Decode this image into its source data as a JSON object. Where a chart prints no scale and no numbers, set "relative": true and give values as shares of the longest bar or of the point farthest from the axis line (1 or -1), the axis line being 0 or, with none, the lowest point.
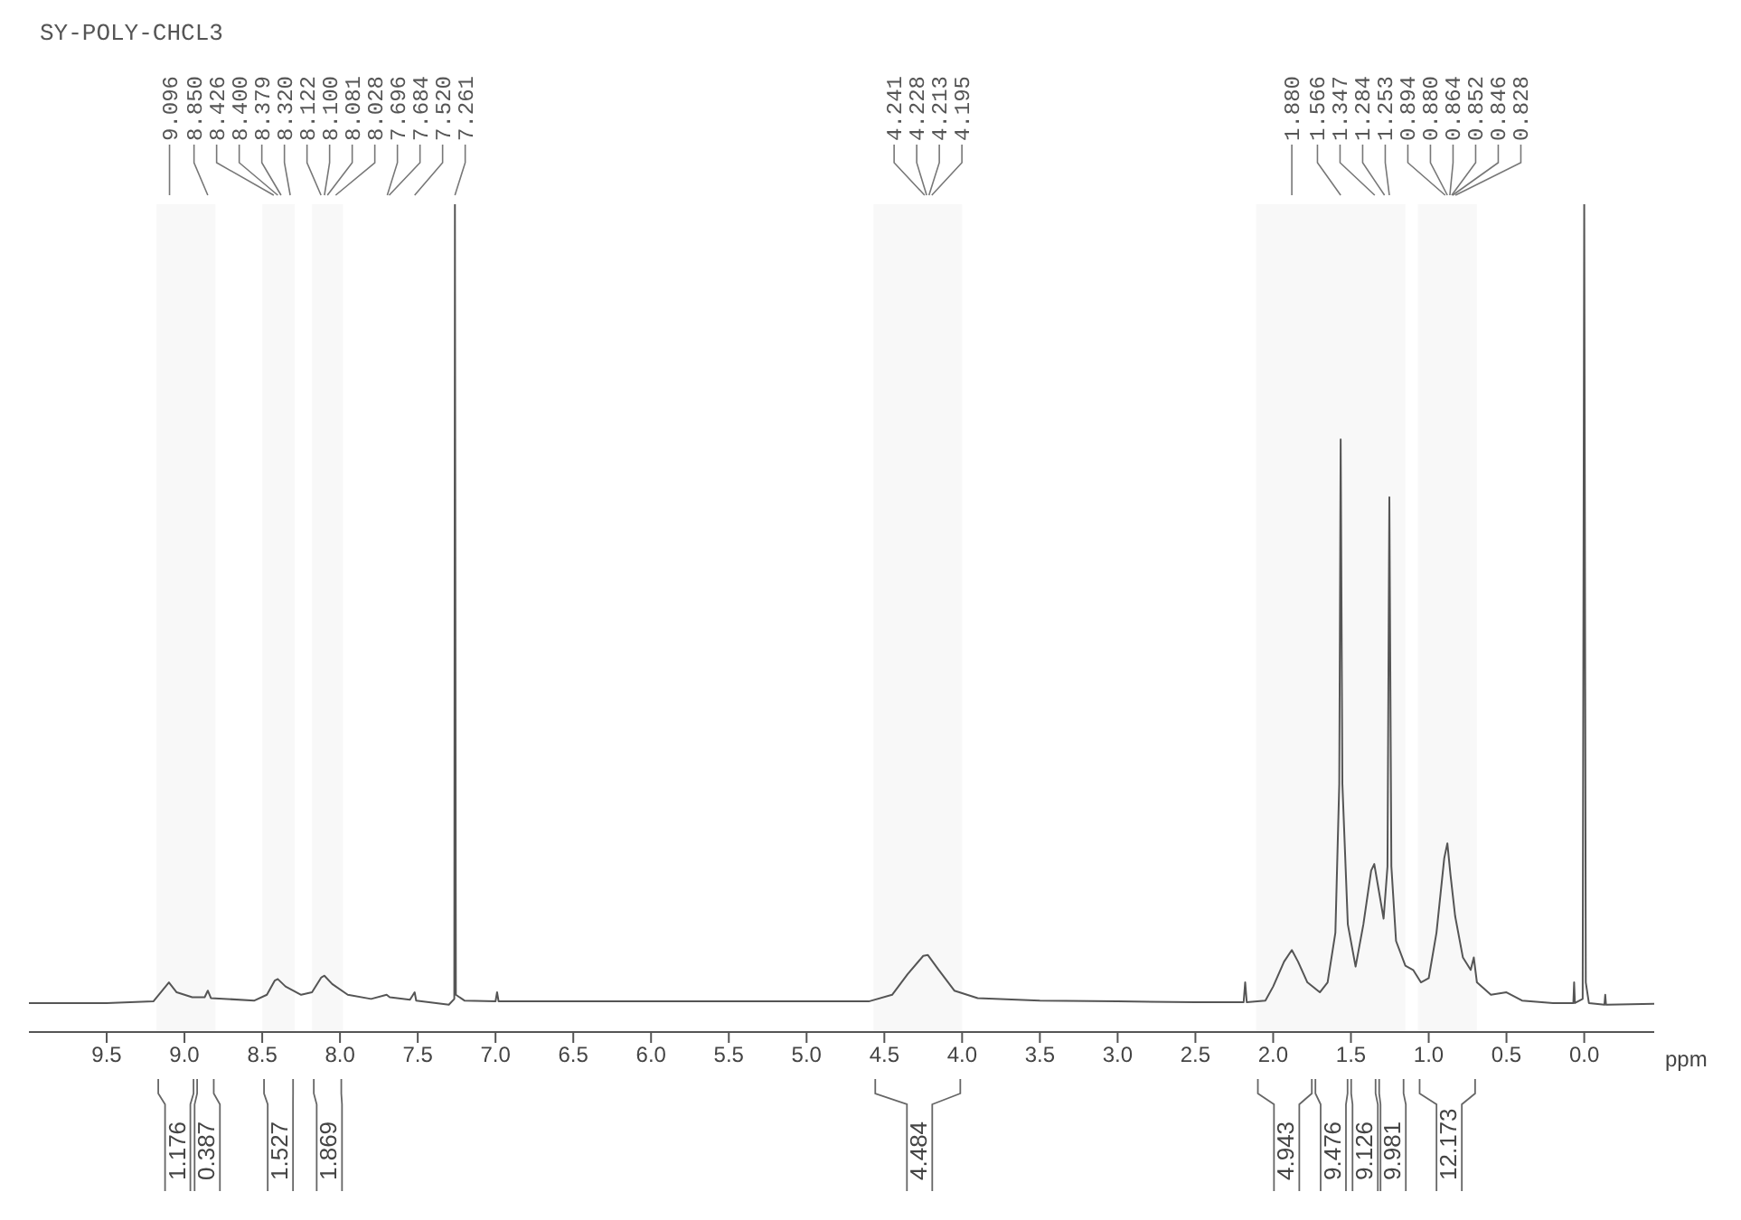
{
  "chart_data": {
    "type": "line",
    "title": "SY-POLY-CHCL3",
    "xlabel": "ppm",
    "relative": true,
    "xlim": [
      10.0,
      -0.45
    ],
    "xticks": [
      {
        "value": 9.5,
        "label": "9.5"
      },
      {
        "value": 9.0,
        "label": "9.0"
      },
      {
        "value": 8.5,
        "label": "8.5"
      },
      {
        "value": 8.0,
        "label": "8.0"
      },
      {
        "value": 7.5,
        "label": "7.5"
      },
      {
        "value": 7.0,
        "label": "7.0"
      },
      {
        "value": 6.5,
        "label": "6.5"
      },
      {
        "value": 6.0,
        "label": "6.0"
      },
      {
        "value": 5.5,
        "label": "5.5"
      },
      {
        "value": 5.0,
        "label": "5.0"
      },
      {
        "value": 4.5,
        "label": "4.5"
      },
      {
        "value": 4.0,
        "label": "4.0"
      },
      {
        "value": 3.5,
        "label": "3.5"
      },
      {
        "value": 3.0,
        "label": "3.0"
      },
      {
        "value": 2.5,
        "label": "2.5"
      },
      {
        "value": 2.0,
        "label": "2.0"
      },
      {
        "value": 1.5,
        "label": "1.5"
      },
      {
        "value": 1.0,
        "label": "1.0"
      },
      {
        "value": 0.5,
        "label": "0.5"
      },
      {
        "value": 0.0,
        "label": "0.0"
      }
    ],
    "x": [
      10.0,
      9.5,
      9.2,
      9.1,
      9.05,
      8.95,
      8.87,
      8.85,
      8.83,
      8.55,
      8.47,
      8.42,
      8.4,
      8.35,
      8.25,
      8.18,
      8.12,
      8.1,
      8.05,
      7.95,
      7.8,
      7.7,
      7.68,
      7.55,
      7.52,
      7.51,
      7.3,
      7.265,
      7.261,
      7.255,
      7.2,
      7.0,
      6.99,
      6.98,
      6.0,
      5.0,
      4.6,
      4.45,
      4.35,
      4.25,
      4.22,
      4.15,
      4.05,
      3.9,
      3.5,
      3.0,
      2.5,
      2.19,
      2.18,
      2.17,
      2.05,
      2.0,
      1.93,
      1.88,
      1.84,
      1.78,
      1.7,
      1.65,
      1.6,
      1.575,
      1.566,
      1.555,
      1.52,
      1.47,
      1.42,
      1.37,
      1.35,
      1.32,
      1.29,
      1.265,
      1.253,
      1.24,
      1.21,
      1.15,
      1.1,
      1.05,
      1.0,
      0.95,
      0.9,
      0.88,
      0.86,
      0.83,
      0.78,
      0.73,
      0.71,
      0.69,
      0.6,
      0.5,
      0.4,
      0.2,
      0.07,
      0.065,
      0.06,
      0.01,
      0.0,
      -0.01,
      -0.03,
      -0.13,
      -0.135,
      -0.14,
      -0.45
    ],
    "series": [
      {
        "color": "#555555",
        "values": [
          0.035,
          0.035,
          0.037,
          0.06,
          0.048,
          0.042,
          0.042,
          0.05,
          0.041,
          0.038,
          0.045,
          0.062,
          0.064,
          0.055,
          0.045,
          0.048,
          0.066,
          0.068,
          0.058,
          0.045,
          0.04,
          0.045,
          0.042,
          0.039,
          0.048,
          0.038,
          0.033,
          0.04,
          1.0,
          0.045,
          0.038,
          0.037,
          0.048,
          0.037,
          0.037,
          0.037,
          0.037,
          0.045,
          0.07,
          0.092,
          0.093,
          0.075,
          0.05,
          0.041,
          0.038,
          0.037,
          0.036,
          0.036,
          0.06,
          0.036,
          0.038,
          0.055,
          0.085,
          0.099,
          0.085,
          0.06,
          0.048,
          0.06,
          0.12,
          0.3,
          0.716,
          0.3,
          0.13,
          0.079,
          0.13,
          0.195,
          0.203,
          0.17,
          0.137,
          0.2,
          0.646,
          0.2,
          0.11,
          0.08,
          0.075,
          0.06,
          0.065,
          0.12,
          0.21,
          0.228,
          0.19,
          0.14,
          0.09,
          0.075,
          0.09,
          0.06,
          0.045,
          0.048,
          0.038,
          0.035,
          0.035,
          0.06,
          0.035,
          0.04,
          1.0,
          0.06,
          0.035,
          0.033,
          0.045,
          0.033,
          0.034
        ]
      }
    ],
    "annotations": [
      {
        "text": "9.096",
        "x": 9.096
      },
      {
        "text": "8.850",
        "x": 8.85
      },
      {
        "text": "8.426",
        "x": 8.426
      },
      {
        "text": "8.400",
        "x": 8.4
      },
      {
        "text": "8.379",
        "x": 8.379
      },
      {
        "text": "8.320",
        "x": 8.32
      },
      {
        "text": "8.122",
        "x": 8.122
      },
      {
        "text": "8.100",
        "x": 8.1
      },
      {
        "text": "8.081",
        "x": 8.081
      },
      {
        "text": "8.028",
        "x": 8.028
      },
      {
        "text": "7.696",
        "x": 7.696
      },
      {
        "text": "7.684",
        "x": 7.684
      },
      {
        "text": "7.520",
        "x": 7.52
      },
      {
        "text": "7.261",
        "x": 7.261
      },
      {
        "text": "4.241",
        "x": 4.241
      },
      {
        "text": "4.228",
        "x": 4.228
      },
      {
        "text": "4.213",
        "x": 4.213
      },
      {
        "text": "4.195",
        "x": 4.195
      },
      {
        "text": "1.880",
        "x": 1.88
      },
      {
        "text": "1.566",
        "x": 1.566
      },
      {
        "text": "1.347",
        "x": 1.347
      },
      {
        "text": "1.284",
        "x": 1.284
      },
      {
        "text": "1.253",
        "x": 1.253
      },
      {
        "text": "0.894",
        "x": 0.894
      },
      {
        "text": "0.880",
        "x": 0.88
      },
      {
        "text": "0.864",
        "x": 0.864
      },
      {
        "text": "0.852",
        "x": 0.852
      },
      {
        "text": "0.846",
        "x": 0.846
      },
      {
        "text": "0.828",
        "x": 0.828
      },
      "1.176",
      "0.387",
      "1.527",
      "1.869",
      "4.484",
      "4.943",
      "9.476",
      "9.126",
      "9.981",
      "12.173"
    ],
    "bands": [
      {
        "axis": "x",
        "from": 9.18,
        "to": 8.93
      },
      {
        "axis": "x",
        "from": 8.93,
        "to": 8.8
      },
      {
        "axis": "x",
        "from": 8.5,
        "to": 8.29
      },
      {
        "axis": "x",
        "from": 8.18,
        "to": 7.98
      },
      {
        "axis": "x",
        "from": 4.57,
        "to": 4.0
      },
      {
        "axis": "x",
        "from": 2.11,
        "to": 1.74
      },
      {
        "axis": "x",
        "from": 1.74,
        "to": 1.51
      },
      {
        "axis": "x",
        "from": 1.51,
        "to": 1.33
      },
      {
        "axis": "x",
        "from": 1.33,
        "to": 1.15
      },
      {
        "axis": "x",
        "from": 1.07,
        "to": 0.69
      }
    ]
  }
}
